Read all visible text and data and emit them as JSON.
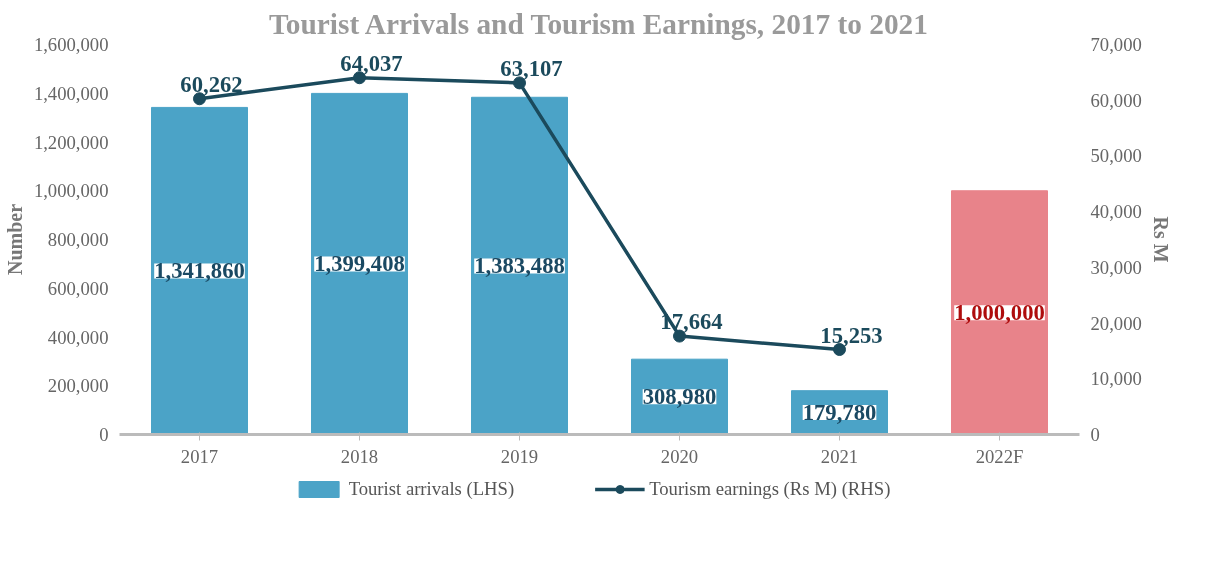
{
  "chart_data": {
    "type": "bar",
    "title": "Tourist Arrivals and Tourism Earnings, 2017 to 2021",
    "categories": [
      "2017",
      "2018",
      "2019",
      "2020",
      "2021",
      "2022F"
    ],
    "ylabel": "Number",
    "y2label": "Rs M",
    "ylim": [
      0,
      1600000
    ],
    "yticks": [
      {
        "value": 0,
        "label": "0"
      },
      {
        "value": 200000,
        "label": "200,000"
      },
      {
        "value": 400000,
        "label": "400,000"
      },
      {
        "value": 600000,
        "label": "600,000"
      },
      {
        "value": 800000,
        "label": "800,000"
      },
      {
        "value": 1000000,
        "label": "1,000,000"
      },
      {
        "value": 1200000,
        "label": "1,200,000"
      },
      {
        "value": 1400000,
        "label": "1,400,000"
      },
      {
        "value": 1600000,
        "label": "1,600,000"
      }
    ],
    "y2lim": [
      0,
      70000
    ],
    "y2ticks": [
      {
        "value": 0,
        "label": "0"
      },
      {
        "value": 10000,
        "label": "10,000"
      },
      {
        "value": 20000,
        "label": "20,000"
      },
      {
        "value": 30000,
        "label": "30,000"
      },
      {
        "value": 40000,
        "label": "40,000"
      },
      {
        "value": 50000,
        "label": "50,000"
      },
      {
        "value": 60000,
        "label": "60,000"
      },
      {
        "value": 70000,
        "label": "70,000"
      }
    ],
    "series": [
      {
        "name": "Tourist arrivals (LHS)",
        "value_labels": [
          "1,341,860",
          "1,399,408",
          "1,383,488",
          "308,980",
          "179,780",
          "1,000,000"
        ],
        "color": "#4ba3c7",
        "colors": [
          "#4ba3c7",
          "#4ba3c7",
          "#4ba3c7",
          "#4ba3c7",
          "#4ba3c7",
          "#e8838a"
        ],
        "values": [
          1341860,
          1399408,
          1383488,
          308980,
          179780,
          1000000
        ]
      },
      {
        "name": "Tourism earnings (Rs M) (RHS)",
        "type": "line",
        "axis": "y2",
        "color": "#1b4a5c",
        "values": [
          60262,
          64037,
          63107,
          17664,
          15253,
          null
        ],
        "value_labels": [
          "60,262",
          "64,037",
          "63,107",
          "17,664",
          "15,253",
          null
        ]
      }
    ],
    "marker": "circle",
    "line_style": "solid",
    "grid": false,
    "legend": "bottom"
  }
}
